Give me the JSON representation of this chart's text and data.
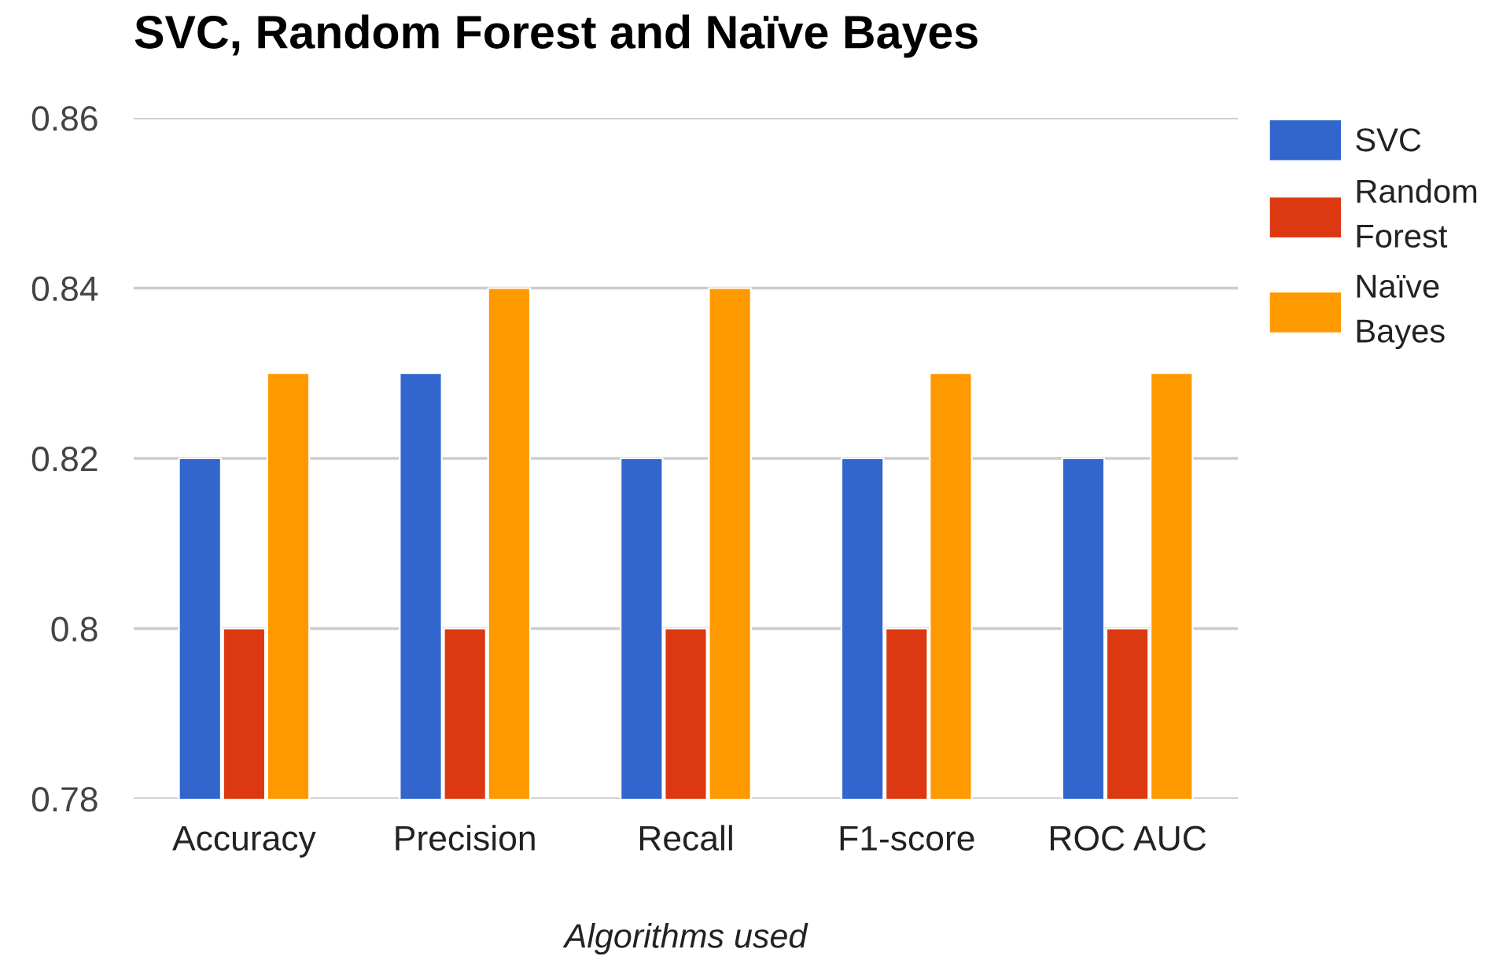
{
  "chart_data": {
    "type": "bar",
    "title": "SVC, Random Forest and Naïve Bayes",
    "xlabel": "Algorithms used",
    "categories": [
      "Accuracy",
      "Precision",
      "Recall",
      "F1-score",
      "ROC AUC"
    ],
    "series": [
      {
        "name": "SVC",
        "color": "#3366cc",
        "values": [
          0.82,
          0.83,
          0.82,
          0.82,
          0.82
        ]
      },
      {
        "name": "Random Forest",
        "color": "#dc3912",
        "values": [
          0.8,
          0.8,
          0.8,
          0.8,
          0.8
        ]
      },
      {
        "name": "Naïve Bayes",
        "color": "#ff9900",
        "values": [
          0.83,
          0.84,
          0.84,
          0.83,
          0.83
        ]
      }
    ],
    "ylim": [
      0.78,
      0.86
    ],
    "yticks": [
      0.78,
      0.8,
      0.82,
      0.84,
      0.86
    ],
    "grid": "y",
    "legend": "right"
  }
}
